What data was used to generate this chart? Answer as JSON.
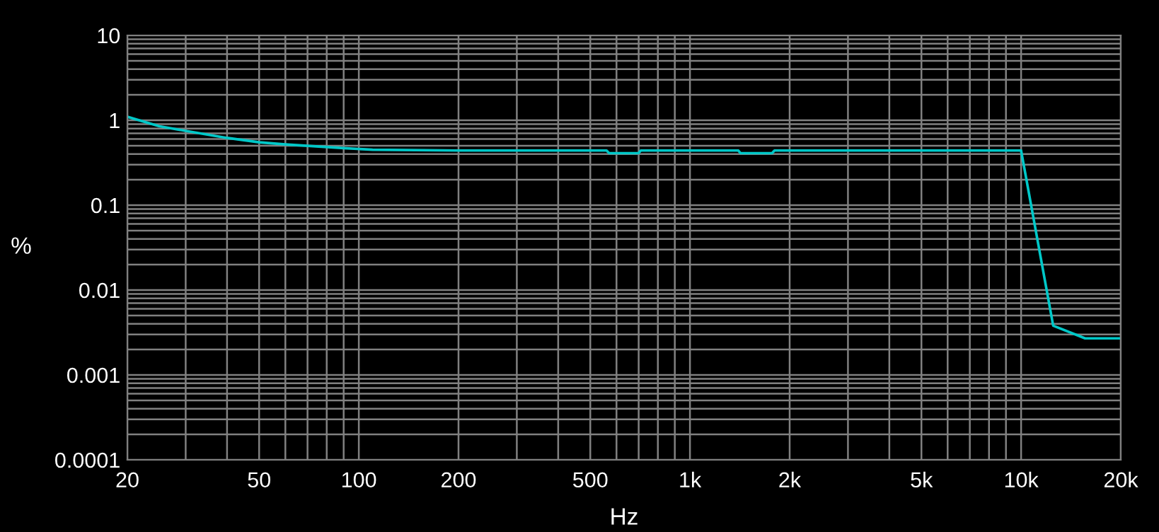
{
  "chart_data": {
    "type": "line",
    "xlabel": "Hz",
    "ylabel": "%",
    "log": "xy",
    "grid": true,
    "marker": "none",
    "line_style": "solid",
    "x": [
      20,
      25,
      30,
      40,
      50,
      60,
      70,
      90,
      110,
      200,
      560,
      570,
      700,
      710,
      1400,
      1420,
      1770,
      1800,
      10000,
      12500,
      15600,
      20000
    ],
    "series": [
      {
        "color": "#00c8c8",
        "values": [
          1.1,
          0.85,
          0.75,
          0.62,
          0.55,
          0.52,
          0.5,
          0.47,
          0.45,
          0.44,
          0.44,
          0.41,
          0.41,
          0.44,
          0.44,
          0.41,
          0.41,
          0.44,
          0.44,
          0.0038,
          0.0027,
          0.0027
        ]
      }
    ],
    "xlim": [
      20,
      20000
    ],
    "xticks": [
      20,
      50,
      100,
      200,
      500,
      {
        "value": 1000,
        "label": "1k"
      },
      {
        "value": 2000,
        "label": "2k"
      },
      {
        "value": 5000,
        "label": "5k"
      },
      {
        "value": 10000,
        "label": "10k"
      },
      {
        "value": 20000,
        "label": "20k"
      }
    ],
    "ylim": [
      0.0001,
      10
    ],
    "yticks": [
      {
        "value": 0.0001,
        "label": "0.0001"
      },
      {
        "value": 0.001,
        "label": "0.001"
      },
      {
        "value": 0.01,
        "label": "0.01"
      },
      {
        "value": 0.1,
        "label": "0.1"
      },
      {
        "value": 1,
        "label": "1"
      },
      {
        "value": 10,
        "label": "10"
      }
    ]
  }
}
